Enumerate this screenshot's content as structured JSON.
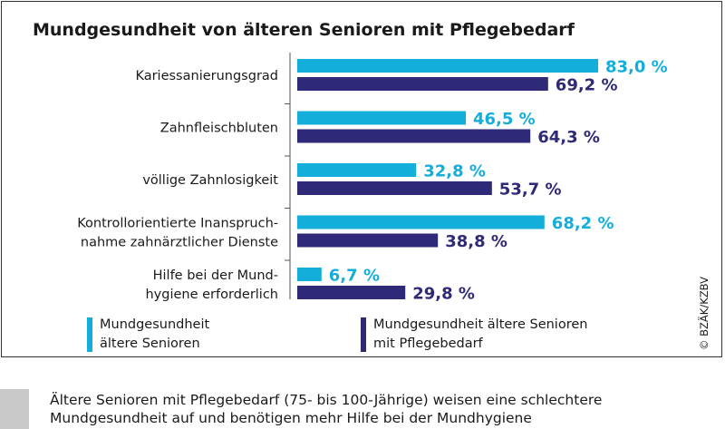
{
  "chart_data": {
    "type": "bar",
    "orientation": "horizontal",
    "title": "Mundgesundheit von älteren Senioren mit Pflegebedarf",
    "categories": [
      [
        "Kariessanierungsgrad"
      ],
      [
        "Zahnfleischbluten"
      ],
      [
        "völlige Zahnlosigkeit"
      ],
      [
        "Kontrollorientierte Inanspruch-",
        "nahme zahnärztlicher Dienste"
      ],
      [
        "Hilfe bei der Mund-",
        "hygiene erforderlich"
      ]
    ],
    "series": [
      {
        "name": "Mundgesundheit ältere Senioren",
        "legend_lines": [
          "Mundgesundheit",
          "ältere Senioren"
        ],
        "color": "#14aedb",
        "values": [
          83.0,
          46.5,
          32.8,
          68.2,
          6.7
        ],
        "labels": [
          "83,0 %",
          "46,5 %",
          "32,8 %",
          "68,2 %",
          "6,7 %"
        ]
      },
      {
        "name": "Mundgesundheit ältere Senioren mit Pflegebedarf",
        "legend_lines": [
          "Mundgesundheit ältere Senioren",
          "mit Pflegebedarf"
        ],
        "color": "#2e2a78",
        "values": [
          69.2,
          64.3,
          53.7,
          38.8,
          29.8
        ],
        "labels": [
          "69,2 %",
          "64,3 %",
          "53,7 %",
          "38,8 %",
          "29,8 %"
        ]
      }
    ],
    "xlim": [
      0,
      100
    ],
    "grid": false,
    "legend_position": "bottom"
  },
  "credit": "© BZÄK/KZBV",
  "caption": {
    "lines": [
      "Ältere Senioren mit Pflegebedarf (75- bis 100-Jährige) weisen eine schlechtere",
      "Mundgesundheit auf und benötigen mehr Hilfe bei der Mundhygiene"
    ]
  }
}
